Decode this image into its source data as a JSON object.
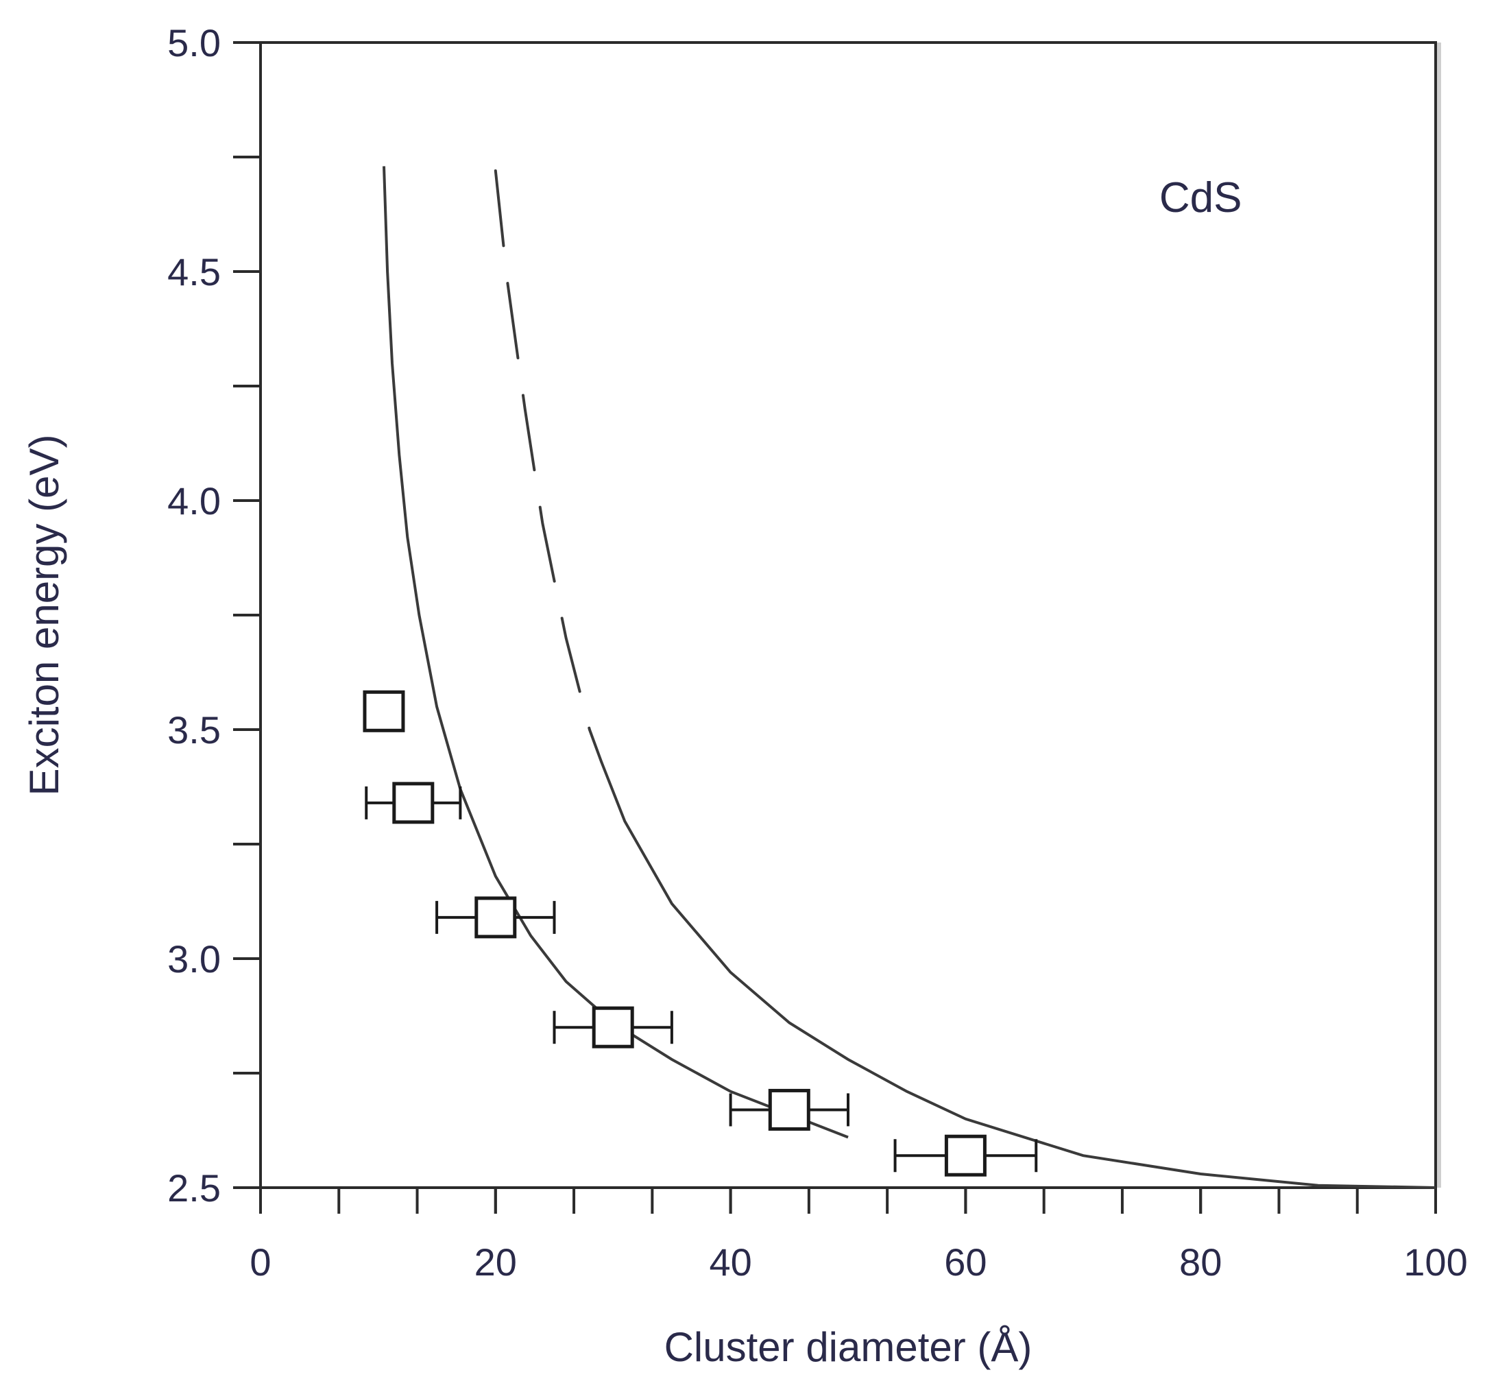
{
  "chart_data": {
    "type": "scatter",
    "title": "",
    "xlabel": "Cluster diameter (Å)",
    "ylabel": "Exciton energy (eV)",
    "xlim": [
      0,
      100
    ],
    "ylim": [
      2.5,
      5.0
    ],
    "x_ticks": [
      0,
      20,
      40,
      60,
      80,
      100
    ],
    "x_tick_labels": [
      "0",
      "20",
      "40",
      "60",
      "80",
      "100"
    ],
    "y_ticks": [
      2.5,
      3.0,
      3.5,
      4.0,
      4.5,
      5.0
    ],
    "y_tick_labels": [
      "2.5",
      "3.0",
      "3.5",
      "4.0",
      "4.5",
      "5.0"
    ],
    "grid": false,
    "annotation": "CdS",
    "series": [
      {
        "kind": "markers",
        "marker": "open-square",
        "points": [
          {
            "x": 10.5,
            "y": 3.54
          },
          {
            "x": 13,
            "y": 3.34,
            "xerr": [
              9,
              17
            ]
          },
          {
            "x": 20,
            "y": 3.09,
            "xerr": [
              15,
              25
            ]
          },
          {
            "x": 30,
            "y": 2.85,
            "xerr": [
              25,
              35
            ]
          },
          {
            "x": 45,
            "y": 2.67,
            "xerr": [
              40,
              50
            ]
          },
          {
            "x": 60,
            "y": 2.57,
            "xerr": [
              54,
              66
            ]
          }
        ]
      },
      {
        "kind": "line",
        "style": "solid",
        "points": [
          {
            "x": 10.5,
            "y": 4.73
          },
          {
            "x": 10.8,
            "y": 4.5
          },
          {
            "x": 11.2,
            "y": 4.3
          },
          {
            "x": 11.8,
            "y": 4.1
          },
          {
            "x": 12.5,
            "y": 3.92
          },
          {
            "x": 13.5,
            "y": 3.75
          },
          {
            "x": 15,
            "y": 3.55
          },
          {
            "x": 17,
            "y": 3.37
          },
          {
            "x": 20,
            "y": 3.18
          },
          {
            "x": 23,
            "y": 3.05
          },
          {
            "x": 26,
            "y": 2.95
          },
          {
            "x": 30,
            "y": 2.86
          },
          {
            "x": 35,
            "y": 2.78
          },
          {
            "x": 40,
            "y": 2.71
          },
          {
            "x": 45,
            "y": 2.66
          },
          {
            "x": 50,
            "y": 2.61
          }
        ]
      },
      {
        "kind": "line",
        "style": "dashed-then-solid",
        "dash_until_x": 29,
        "points": [
          {
            "x": 20,
            "y": 4.72
          },
          {
            "x": 21,
            "y": 4.48
          },
          {
            "x": 22.5,
            "y": 4.2
          },
          {
            "x": 24,
            "y": 3.95
          },
          {
            "x": 26,
            "y": 3.7
          },
          {
            "x": 28,
            "y": 3.5
          },
          {
            "x": 29,
            "y": 3.43
          },
          {
            "x": 31,
            "y": 3.3
          },
          {
            "x": 35,
            "y": 3.12
          },
          {
            "x": 40,
            "y": 2.97
          },
          {
            "x": 45,
            "y": 2.86
          },
          {
            "x": 50,
            "y": 2.78
          },
          {
            "x": 55,
            "y": 2.71
          },
          {
            "x": 60,
            "y": 2.65
          },
          {
            "x": 70,
            "y": 2.57
          },
          {
            "x": 80,
            "y": 2.53
          },
          {
            "x": 90,
            "y": 2.505
          },
          {
            "x": 100,
            "y": 2.5
          }
        ]
      }
    ]
  }
}
